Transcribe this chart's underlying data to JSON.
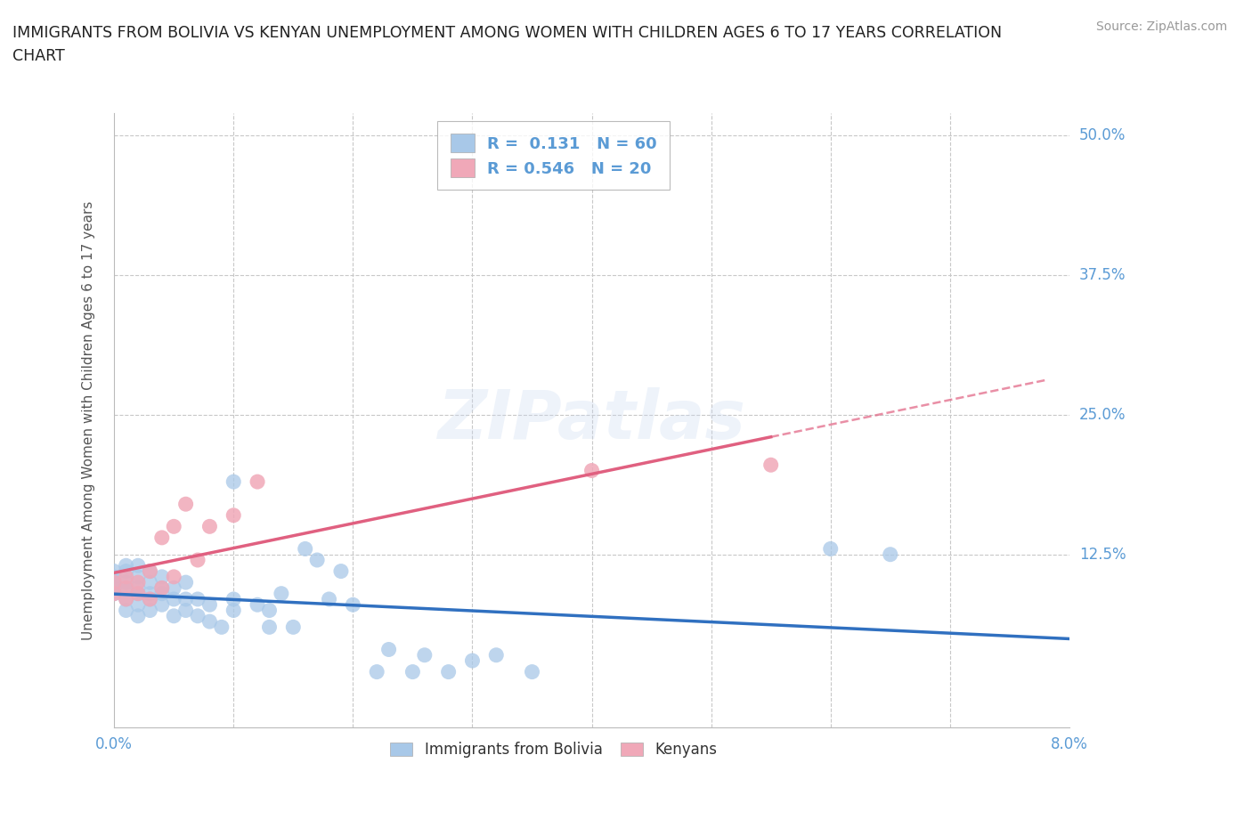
{
  "title": "IMMIGRANTS FROM BOLIVIA VS KENYAN UNEMPLOYMENT AMONG WOMEN WITH CHILDREN AGES 6 TO 17 YEARS CORRELATION\nCHART",
  "source_text": "Source: ZipAtlas.com",
  "ylabel": "Unemployment Among Women with Children Ages 6 to 17 years",
  "xlim": [
    0.0,
    0.08
  ],
  "ylim": [
    -0.03,
    0.52
  ],
  "yticks": [
    0.0,
    0.125,
    0.25,
    0.375,
    0.5
  ],
  "ytick_labels": [
    "",
    "12.5%",
    "25.0%",
    "37.5%",
    "50.0%"
  ],
  "xticks": [
    0.0,
    0.01,
    0.02,
    0.03,
    0.04,
    0.05,
    0.06,
    0.07,
    0.08
  ],
  "xtick_labels": [
    "0.0%",
    "",
    "",
    "",
    "",
    "",
    "",
    "",
    "8.0%"
  ],
  "grid_color": "#c8c8c8",
  "background_color": "#ffffff",
  "tick_label_color": "#5b9bd5",
  "watermark_text": "ZIPatlas",
  "legend_R1": "0.131",
  "legend_N1": "60",
  "legend_R2": "0.546",
  "legend_N2": "20",
  "bolivia_color": "#a8c8e8",
  "kenya_color": "#f0a8b8",
  "bolivia_line_color": "#3070c0",
  "kenya_line_color": "#e06080",
  "bolivia_scatter_x": [
    0.0,
    0.0,
    0.0,
    0.0,
    0.0,
    0.001,
    0.001,
    0.001,
    0.001,
    0.001,
    0.001,
    0.002,
    0.002,
    0.002,
    0.002,
    0.002,
    0.002,
    0.003,
    0.003,
    0.003,
    0.003,
    0.003,
    0.004,
    0.004,
    0.004,
    0.004,
    0.005,
    0.005,
    0.005,
    0.006,
    0.006,
    0.006,
    0.007,
    0.007,
    0.008,
    0.008,
    0.009,
    0.01,
    0.01,
    0.01,
    0.012,
    0.013,
    0.013,
    0.014,
    0.015,
    0.016,
    0.017,
    0.018,
    0.019,
    0.02,
    0.022,
    0.023,
    0.025,
    0.026,
    0.028,
    0.03,
    0.032,
    0.035,
    0.06,
    0.065
  ],
  "bolivia_scatter_y": [
    0.09,
    0.095,
    0.1,
    0.105,
    0.11,
    0.075,
    0.085,
    0.095,
    0.1,
    0.11,
    0.115,
    0.07,
    0.08,
    0.09,
    0.095,
    0.105,
    0.115,
    0.075,
    0.085,
    0.09,
    0.1,
    0.11,
    0.08,
    0.09,
    0.095,
    0.105,
    0.07,
    0.085,
    0.095,
    0.075,
    0.085,
    0.1,
    0.07,
    0.085,
    0.065,
    0.08,
    0.06,
    0.075,
    0.085,
    0.19,
    0.08,
    0.06,
    0.075,
    0.09,
    0.06,
    0.13,
    0.12,
    0.085,
    0.11,
    0.08,
    0.02,
    0.04,
    0.02,
    0.035,
    0.02,
    0.03,
    0.035,
    0.02,
    0.13,
    0.125
  ],
  "kenya_scatter_x": [
    0.0,
    0.0,
    0.001,
    0.001,
    0.001,
    0.002,
    0.002,
    0.003,
    0.003,
    0.004,
    0.004,
    0.005,
    0.005,
    0.006,
    0.007,
    0.008,
    0.01,
    0.012,
    0.04,
    0.055
  ],
  "kenya_scatter_y": [
    0.09,
    0.1,
    0.085,
    0.095,
    0.105,
    0.09,
    0.1,
    0.085,
    0.11,
    0.095,
    0.14,
    0.105,
    0.15,
    0.17,
    0.12,
    0.15,
    0.16,
    0.19,
    0.2,
    0.205
  ]
}
